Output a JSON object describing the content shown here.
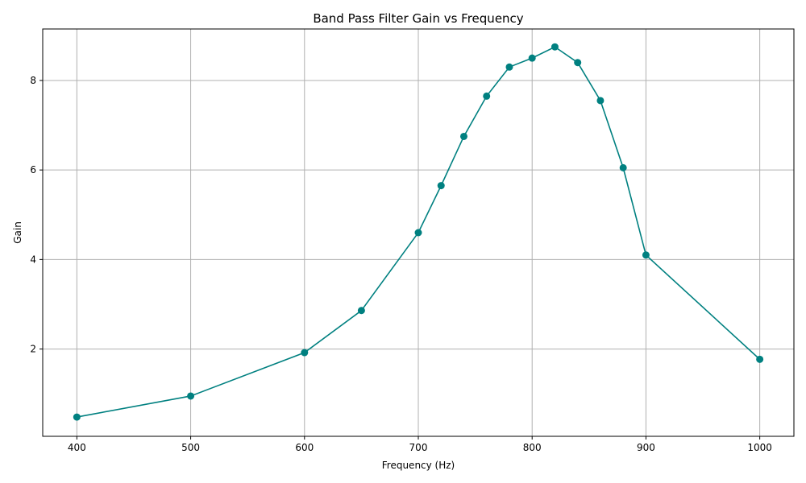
{
  "chart_data": {
    "type": "line",
    "title": "Band Pass Filter Gain vs Frequency",
    "xlabel": "Frequency (Hz)",
    "ylabel": "Gain",
    "xlim": [
      370,
      1030
    ],
    "ylim": [
      0.05,
      9.15
    ],
    "xticks": [
      400,
      500,
      600,
      700,
      800,
      900,
      1000
    ],
    "yticks": [
      2,
      4,
      6,
      8
    ],
    "grid": true,
    "series": [
      {
        "name": "Gain",
        "color": "#008080",
        "marker": "circle",
        "x": [
          400,
          500,
          600,
          650,
          700,
          720,
          740,
          760,
          780,
          800,
          820,
          840,
          860,
          880,
          900,
          1000
        ],
        "y": [
          0.48,
          0.95,
          1.92,
          2.86,
          4.6,
          5.65,
          6.75,
          7.65,
          8.3,
          8.5,
          8.75,
          8.4,
          7.55,
          6.05,
          4.1,
          1.77
        ]
      }
    ]
  }
}
